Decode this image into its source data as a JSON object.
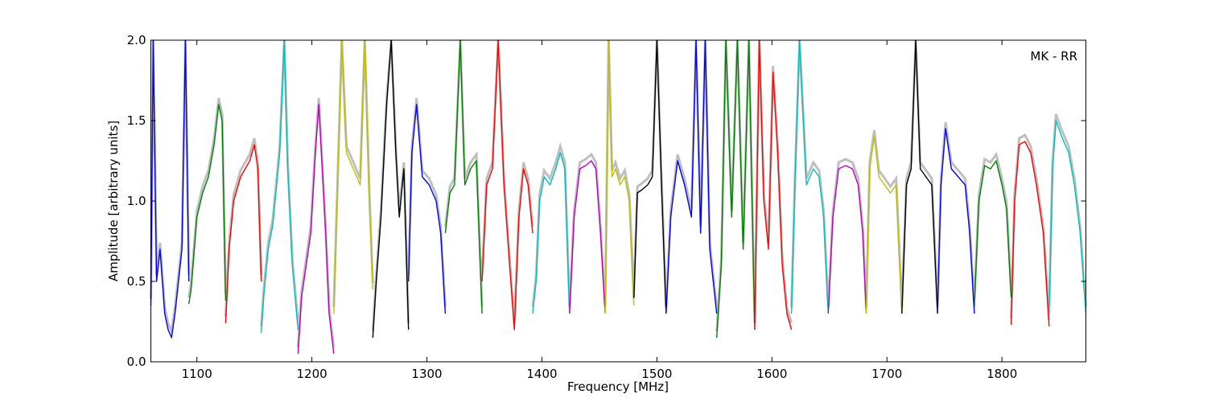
{
  "chart_data": {
    "type": "line",
    "title": "",
    "xlabel": "Frequency [MHz]",
    "ylabel": "Amplitude [arbitrary units]",
    "annotation": "MK - RR",
    "xlim": [
      1060,
      1873
    ],
    "ylim": [
      0,
      2.0
    ],
    "legend": "none",
    "grid": false,
    "xticks": [
      1100,
      1200,
      1300,
      1400,
      1500,
      1600,
      1700,
      1800
    ],
    "xtick_labels": [
      "1100",
      "1200",
      "1300",
      "1400",
      "1500",
      "1600",
      "1700",
      "1800"
    ],
    "yticks": [
      0.0,
      0.5,
      1.0,
      1.5,
      2.0
    ],
    "ytick_labels": [
      "0.0",
      "0.5",
      "1.0",
      "1.5",
      "2.0"
    ],
    "colors": {
      "background_trace": "#bfbfbf",
      "blue": "#0000ff",
      "green": "#008000",
      "red": "#ff0000",
      "cyan": "#00bfbf",
      "magenta": "#bf00bf",
      "olive": "#bfbf00",
      "black": "#000000"
    },
    "series": [
      {
        "color": "#0000ff",
        "x": [
          1060,
          1062,
          1065,
          1068,
          1072,
          1075,
          1078,
          1081,
          1084,
          1087,
          1090,
          1093
        ],
        "y": [
          0.35,
          2.0,
          0.5,
          0.7,
          0.3,
          0.2,
          0.15,
          0.3,
          0.5,
          0.7,
          2.0,
          0.5
        ]
      },
      {
        "color": "#008000",
        "x": [
          1093,
          1095,
          1100,
          1105,
          1110,
          1115,
          1119,
          1122,
          1125
        ],
        "y": [
          0.36,
          0.45,
          0.9,
          1.05,
          1.15,
          1.35,
          1.6,
          1.5,
          0.38
        ]
      },
      {
        "color": "#ff0000",
        "x": [
          1125,
          1128,
          1132,
          1138,
          1142,
          1146,
          1150,
          1153,
          1156
        ],
        "y": [
          0.24,
          0.7,
          1.0,
          1.15,
          1.2,
          1.25,
          1.35,
          1.2,
          0.5
        ]
      },
      {
        "color": "#00bfbf",
        "x": [
          1156,
          1158,
          1162,
          1166,
          1172,
          1176,
          1179,
          1183,
          1188
        ],
        "y": [
          0.18,
          0.4,
          0.7,
          0.85,
          1.3,
          2.0,
          1.2,
          0.6,
          0.2
        ]
      },
      {
        "color": "#bf00bf",
        "x": [
          1188,
          1191,
          1195,
          1199,
          1203,
          1206,
          1209,
          1212,
          1215,
          1219
        ],
        "y": [
          0.05,
          0.4,
          0.6,
          0.8,
          1.3,
          1.6,
          1.2,
          0.8,
          0.3,
          0.05
        ]
      },
      {
        "color": "#bfbf00",
        "x": [
          1219,
          1222,
          1226,
          1230,
          1236,
          1242,
          1246,
          1250,
          1253
        ],
        "y": [
          0.3,
          1.0,
          2.0,
          1.3,
          1.2,
          1.1,
          2.0,
          1.0,
          0.45
        ]
      },
      {
        "color": "#000000",
        "x": [
          1253,
          1256,
          1260,
          1265,
          1269,
          1273,
          1276,
          1280,
          1284
        ],
        "y": [
          0.15,
          0.5,
          0.9,
          1.6,
          2.0,
          1.3,
          0.9,
          1.2,
          0.2
        ]
      },
      {
        "color": "#0000ff",
        "x": [
          1284,
          1287,
          1291,
          1296,
          1302,
          1308,
          1312,
          1316
        ],
        "y": [
          0.5,
          1.3,
          1.6,
          1.15,
          1.1,
          1.0,
          0.8,
          0.3
        ]
      },
      {
        "color": "#008000",
        "x": [
          1316,
          1320,
          1324,
          1329,
          1333,
          1338,
          1343,
          1348
        ],
        "y": [
          0.8,
          1.05,
          1.1,
          2.0,
          1.1,
          1.2,
          1.25,
          0.3
        ]
      },
      {
        "color": "#ff0000",
        "x": [
          1348,
          1352,
          1357,
          1362,
          1367,
          1372,
          1376,
          1380,
          1384,
          1388,
          1392
        ],
        "y": [
          0.5,
          1.1,
          1.2,
          2.0,
          1.1,
          0.6,
          0.2,
          0.9,
          1.2,
          1.1,
          0.8
        ]
      },
      {
        "color": "#00bfbf",
        "x": [
          1392,
          1395,
          1398,
          1402,
          1407,
          1412,
          1416,
          1420,
          1424
        ],
        "y": [
          0.3,
          0.5,
          1.0,
          1.15,
          1.1,
          1.2,
          1.3,
          1.2,
          0.3
        ]
      },
      {
        "color": "#bf00bf",
        "x": [
          1424,
          1428,
          1433,
          1438,
          1443,
          1447,
          1451,
          1455
        ],
        "y": [
          0.3,
          0.9,
          1.2,
          1.22,
          1.25,
          1.2,
          0.8,
          0.3
        ]
      },
      {
        "color": "#bfbf00",
        "x": [
          1455,
          1458,
          1461,
          1464,
          1468,
          1472,
          1476,
          1480
        ],
        "y": [
          0.3,
          2.0,
          1.15,
          1.2,
          1.1,
          1.15,
          1.0,
          0.35
        ]
      },
      {
        "color": "#000000",
        "x": [
          1480,
          1483,
          1487,
          1492,
          1496,
          1500,
          1504,
          1508
        ],
        "y": [
          0.4,
          1.05,
          1.07,
          1.1,
          1.15,
          2.0,
          1.1,
          0.3
        ]
      },
      {
        "color": "#0000ff",
        "x": [
          1508,
          1512,
          1518,
          1524,
          1530,
          1534,
          1538,
          1542,
          1546,
          1552
        ],
        "y": [
          0.3,
          0.9,
          1.25,
          1.1,
          0.9,
          2.0,
          0.8,
          2.0,
          0.7,
          0.3
        ]
      },
      {
        "color": "#008000",
        "x": [
          1552,
          1556,
          1560,
          1565,
          1570,
          1575,
          1580,
          1585
        ],
        "y": [
          0.15,
          0.6,
          2.0,
          0.9,
          2.0,
          0.7,
          2.0,
          0.2
        ]
      },
      {
        "color": "#ff0000",
        "x": [
          1585,
          1589,
          1593,
          1597,
          1601,
          1605,
          1609,
          1613,
          1617
        ],
        "y": [
          0.2,
          2.0,
          1.0,
          0.7,
          1.8,
          1.3,
          0.6,
          0.3,
          0.2
        ]
      },
      {
        "color": "#00bfbf",
        "x": [
          1617,
          1620,
          1624,
          1630,
          1636,
          1641,
          1645,
          1649
        ],
        "y": [
          0.3,
          1.1,
          2.0,
          1.1,
          1.2,
          1.15,
          0.9,
          0.3
        ]
      },
      {
        "color": "#bf00bf",
        "x": [
          1649,
          1653,
          1658,
          1664,
          1670,
          1675,
          1679,
          1682
        ],
        "y": [
          0.3,
          0.9,
          1.2,
          1.22,
          1.2,
          1.1,
          0.8,
          0.3
        ]
      },
      {
        "color": "#bfbf00",
        "x": [
          1682,
          1685,
          1689,
          1693,
          1698,
          1703,
          1708,
          1713
        ],
        "y": [
          0.3,
          1.2,
          1.4,
          1.15,
          1.1,
          1.05,
          1.1,
          0.3
        ]
      },
      {
        "color": "#000000",
        "x": [
          1713,
          1717,
          1721,
          1725,
          1729,
          1734,
          1739,
          1744
        ],
        "y": [
          0.3,
          1.1,
          1.2,
          2.0,
          1.2,
          1.15,
          1.1,
          0.3
        ]
      },
      {
        "color": "#0000ff",
        "x": [
          1744,
          1747,
          1751,
          1756,
          1762,
          1768,
          1772,
          1776
        ],
        "y": [
          0.3,
          1.1,
          1.45,
          1.2,
          1.15,
          1.1,
          0.8,
          0.3
        ]
      },
      {
        "color": "#008000",
        "x": [
          1776,
          1780,
          1785,
          1790,
          1795,
          1800,
          1804,
          1808
        ],
        "y": [
          0.35,
          1.0,
          1.22,
          1.2,
          1.25,
          1.1,
          0.95,
          0.4
        ]
      },
      {
        "color": "#ff0000",
        "x": [
          1808,
          1811,
          1815,
          1820,
          1825,
          1830,
          1836,
          1841
        ],
        "y": [
          0.23,
          1.0,
          1.35,
          1.37,
          1.3,
          1.1,
          0.8,
          0.22
        ]
      },
      {
        "color": "#00bfbf",
        "x": [
          1841,
          1844,
          1847,
          1852,
          1858,
          1863,
          1868,
          1873
        ],
        "y": [
          0.3,
          1.2,
          1.5,
          1.4,
          1.3,
          1.1,
          0.8,
          0.3
        ]
      }
    ]
  }
}
